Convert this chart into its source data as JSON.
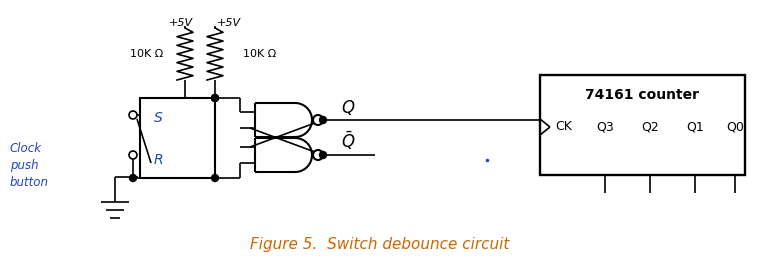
{
  "title": "Figure 5.  Switch debounce circuit",
  "title_color": "#cc6600",
  "title_fontsize": 11,
  "bg_color": "#ffffff",
  "line_color": "#000000",
  "label_color": "#2244bb",
  "figsize": [
    7.73,
    2.61
  ],
  "dpi": 100,
  "vcc_labels": [
    "+5V",
    "+5V"
  ],
  "res_labels": [
    "10K Ω",
    "10K Ω"
  ],
  "sr_labels": [
    "S",
    "R"
  ],
  "counter_title": "74161 counter",
  "counter_pins": [
    "CK",
    "Q3",
    "Q2",
    "Q1",
    "Q0"
  ],
  "clock_label": "Clock\npush\nbutton",
  "q_label": "Q",
  "qbar_label": "$\\bar{Q}$",
  "blue_dot_color": "#2244bb"
}
